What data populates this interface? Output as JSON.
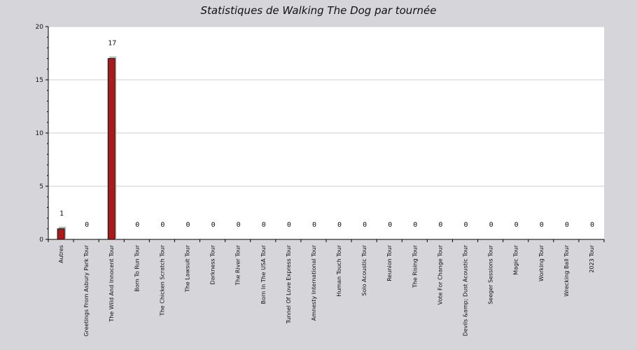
{
  "chart_data": {
    "type": "bar",
    "title": "Statistiques de Walking The Dog par tournée",
    "ylim": [
      0,
      20
    ],
    "yticks": [
      0,
      5,
      10,
      15,
      20
    ],
    "grid": true,
    "categories": [
      "Autres",
      "Greetings From Asbury Park Tour",
      "The Wild And Innocent Tour",
      "Born To Run Tour",
      "The Chicken Scratch Tour",
      "The Lawsuit Tour",
      "Darkness Tour",
      "The River Tour",
      "Born In The USA Tour",
      "Tunnel Of Love Express Tour",
      "Amnesty International Tour",
      "Human Touch Tour",
      "Solo Acoustic Tour",
      "Reunion Tour",
      "The Rising Tour",
      "Vote For Change Tour",
      "Devils &amp; Dust Acoustic Tour",
      "Seeger Sessions Tour",
      "Magic Tour",
      "Working Tour",
      "Wrecking Ball Tour",
      "2023 Tour"
    ],
    "values": [
      1,
      0,
      17,
      0,
      0,
      0,
      0,
      0,
      0,
      0,
      0,
      0,
      0,
      0,
      0,
      0,
      0,
      0,
      0,
      0,
      0,
      0
    ],
    "colors": {
      "bar": "#aa1a1a",
      "shadow": "#b8b8b8",
      "grid": "#cfcfcf",
      "plot_bg": "#ffffff"
    }
  }
}
